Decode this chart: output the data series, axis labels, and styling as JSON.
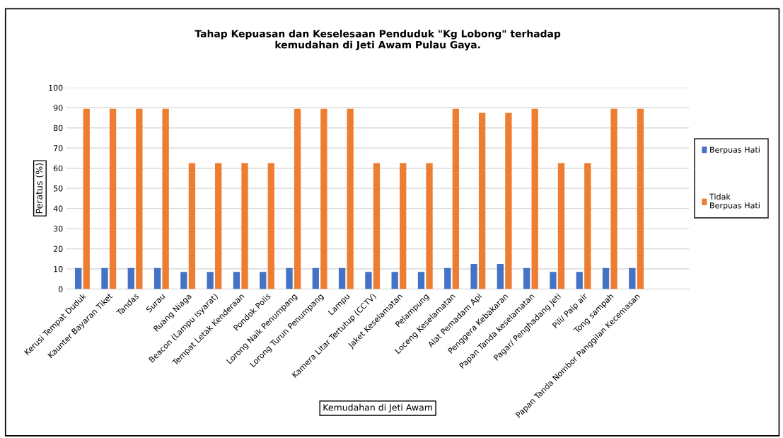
{
  "chart_data": {
    "type": "bar",
    "title": "Tahap Kepuasan dan Keselesaan Penduduk \"Kg Lobong\" terhadap\nkemudahan di Jeti Awam Pulau Gaya.",
    "xlabel": "Kemudahan di Jeti Awam",
    "ylabel": "Peratus (%)",
    "categories": [
      "Kerusi Tempat Duduk",
      "Kaunter Bayaran Tiket",
      "Tandas",
      "Surau",
      "Ruang Niaga",
      "Beacon (Lampu isyarat)",
      "Tempat Letak Kenderaan",
      "Pondok Polis",
      "Lorong Naik Penumpang",
      "Lorong Turun Penumpang",
      "Lampu",
      "Kamera Litar Tertutup (CCTV)",
      "Jaket Keselamatan",
      "Pelampung",
      "Loceng Keselamatan",
      "Alat Pemadam Api",
      "Penggera Kebakaran",
      "Papan Tanda keselamatan",
      "Pagar/ Penghadang Jeti",
      "Pili/ Paip air",
      "Tong sampah",
      "Papan Tanda Nombor Panggilan Kecemasan"
    ],
    "series": [
      {
        "name": "Berpuas Hati",
        "color": "#4472c4",
        "values": [
          10.5,
          10.5,
          10.5,
          10.5,
          8.5,
          8.5,
          8.5,
          8.5,
          10.5,
          10.5,
          10.5,
          8.5,
          8.5,
          8.5,
          10.5,
          12.5,
          12.5,
          10.5,
          8.5,
          8.5,
          10.5,
          10.5
        ]
      },
      {
        "name": "Tidak\nBerpuas Hati",
        "color": "#ed7d31",
        "values": [
          89.5,
          89.5,
          89.5,
          89.5,
          62.5,
          62.5,
          62.5,
          62.5,
          89.5,
          89.5,
          89.5,
          62.5,
          62.5,
          62.5,
          89.5,
          87.5,
          87.5,
          89.5,
          62.5,
          62.5,
          89.5,
          89.5
        ]
      }
    ],
    "ylim": [
      0,
      100
    ],
    "yticks": [
      0,
      10,
      20,
      30,
      40,
      50,
      60,
      70,
      80,
      90,
      100
    ],
    "grid": "y",
    "legend": "right"
  }
}
